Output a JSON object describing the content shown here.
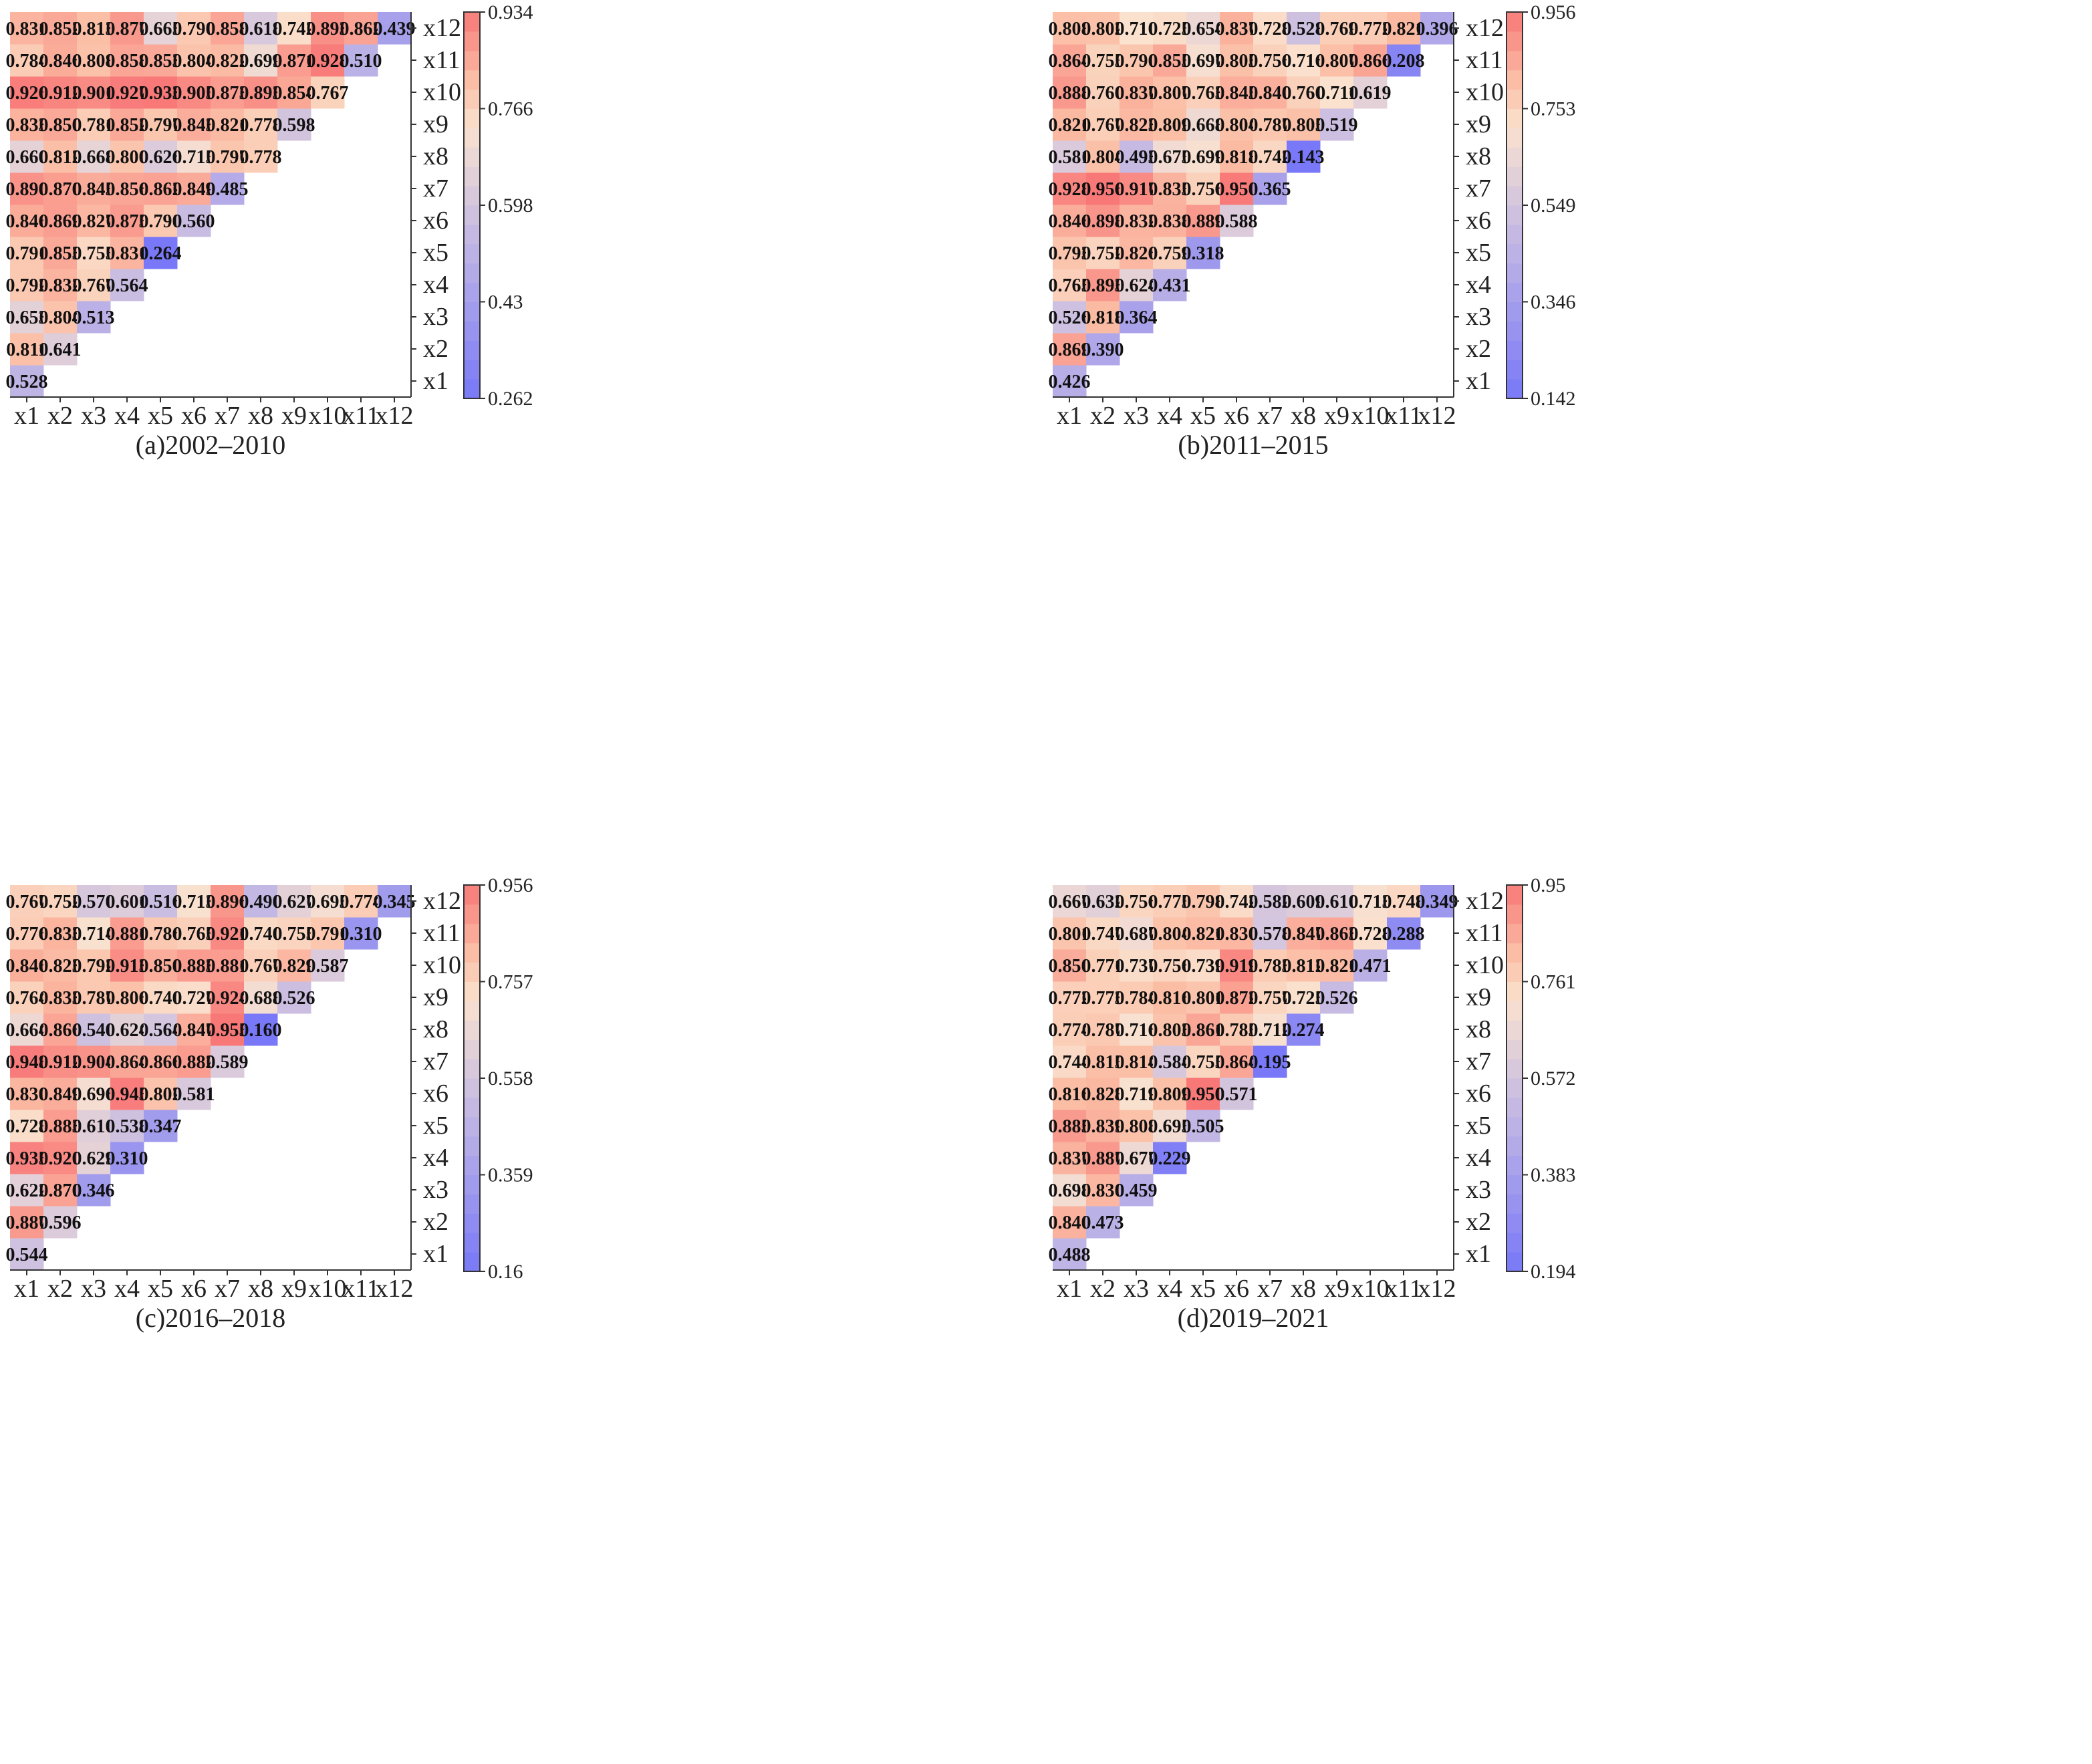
{
  "figure": {
    "description_labels": [
      "x1",
      "x2",
      "x3",
      "x4",
      "x5",
      "x6",
      "x7",
      "x8",
      "x9",
      "x10",
      "x11",
      "x12"
    ],
    "palette": {
      "low": "#7878f8",
      "lavender": "#c9bde2",
      "mid": "#fae2cf",
      "peach": "#fbbfa6",
      "high": "#f87878"
    }
  },
  "chart_data": [
    {
      "type": "heatmap",
      "title": "(a)2002–2010",
      "categories": [
        "x1",
        "x2",
        "x3",
        "x4",
        "x5",
        "x6",
        "x7",
        "x8",
        "x9",
        "x10",
        "x11",
        "x12"
      ],
      "values": [
        [
          0.528
        ],
        [
          0.811,
          0.641
        ],
        [
          0.653,
          0.804,
          0.513
        ],
        [
          0.792,
          0.832,
          0.767,
          0.564
        ],
        [
          0.791,
          0.853,
          0.755,
          0.831,
          0.264
        ],
        [
          0.846,
          0.869,
          0.827,
          0.875,
          0.79,
          0.56
        ],
        [
          0.89,
          0.87,
          0.845,
          0.856,
          0.862,
          0.849,
          0.485
        ],
        [
          0.66,
          0.812,
          0.668,
          0.8,
          0.626,
          0.715,
          0.797,
          0.778
        ],
        [
          0.833,
          0.85,
          0.781,
          0.852,
          0.797,
          0.843,
          0.821,
          0.778,
          0.598
        ],
        [
          0.926,
          0.912,
          0.901,
          0.927,
          0.933,
          0.905,
          0.873,
          0.893,
          0.854,
          0.767
        ],
        [
          0.784,
          0.846,
          0.808,
          0.858,
          0.853,
          0.804,
          0.822,
          0.699,
          0.871,
          0.928,
          0.51
        ],
        [
          0.831,
          0.852,
          0.813,
          0.877,
          0.665,
          0.79,
          0.858,
          0.618,
          0.742,
          0.893,
          0.862,
          0.439
        ]
      ],
      "value_labels": [
        [
          "0.528"
        ],
        [
          "0.811",
          "0.641"
        ],
        [
          "0.653",
          "0.804",
          "0.513"
        ],
        [
          "0.792",
          "0.832",
          "0.767",
          "0.564"
        ],
        [
          "0.791",
          "0.853",
          "0.755",
          "0.831",
          "0.264"
        ],
        [
          "0.846",
          "0.869",
          "0.827",
          "0.875",
          "0.790",
          "0.560"
        ],
        [
          "0.890",
          "0.870",
          "0.845",
          "0.856",
          "0.862",
          "0.849",
          "0.485"
        ],
        [
          "0.660",
          "0.812",
          "0.668",
          "0.800",
          "0.626",
          "0.715",
          "0.797",
          "0.778"
        ],
        [
          "0.833",
          "0.850",
          "0.781",
          "0.852",
          "0.797",
          "0.843",
          "0.821",
          "0.778",
          "0.598"
        ],
        [
          "0.926",
          "0.912",
          "0.901",
          "0.927",
          "0.933",
          "0.905",
          "0.873",
          "0.893",
          "0.854",
          "0.767"
        ],
        [
          "0.784",
          "0.846",
          "0.808",
          "0.858",
          "0.853",
          "0.804",
          "0.822",
          "0.699",
          "0.871",
          "0.928",
          "0.510"
        ],
        [
          "0.831",
          "0.852",
          "0.813",
          "0.877",
          "0.665",
          "0.790",
          "0.858",
          "0.618",
          "0.742",
          "0.893",
          "0.862",
          "0.439"
        ]
      ],
      "colorbar": {
        "min": 0.262,
        "max": 0.934,
        "ticks": [
          "0.262",
          "0.43",
          "0.598",
          "0.766",
          "0.934"
        ]
      }
    },
    {
      "type": "heatmap",
      "title": "(b)2011–2015",
      "categories": [
        "x1",
        "x2",
        "x3",
        "x4",
        "x5",
        "x6",
        "x7",
        "x8",
        "x9",
        "x10",
        "x11",
        "x12"
      ],
      "values": [
        [
          0.426
        ],
        [
          0.869,
          0.39
        ],
        [
          0.526,
          0.818,
          0.364
        ],
        [
          0.765,
          0.893,
          0.624,
          0.431
        ],
        [
          0.793,
          0.752,
          0.826,
          0.759,
          0.318
        ],
        [
          0.846,
          0.898,
          0.832,
          0.838,
          0.889,
          0.588
        ],
        [
          0.928,
          0.956,
          0.917,
          0.835,
          0.756,
          0.95,
          0.365
        ],
        [
          0.581,
          0.804,
          0.493,
          0.675,
          0.699,
          0.818,
          0.742,
          0.143
        ],
        [
          0.821,
          0.767,
          0.823,
          0.809,
          0.668,
          0.804,
          0.787,
          0.805,
          0.519
        ],
        [
          0.888,
          0.76,
          0.837,
          0.807,
          0.763,
          0.845,
          0.84,
          0.76,
          0.711,
          0.619
        ],
        [
          0.864,
          0.755,
          0.79,
          0.855,
          0.697,
          0.805,
          0.756,
          0.716,
          0.807,
          0.866,
          0.208
        ],
        [
          0.808,
          0.802,
          0.71,
          0.725,
          0.654,
          0.837,
          0.728,
          0.528,
          0.769,
          0.772,
          0.821,
          0.396
        ]
      ],
      "value_labels": [
        [
          "0.426"
        ],
        [
          "0.869",
          "0.390"
        ],
        [
          "0.526",
          "0.818",
          "0.364"
        ],
        [
          "0.765",
          "0.893",
          "0.624",
          "0.431"
        ],
        [
          "0.793",
          "0.752",
          "0.826",
          "0.759",
          "0.318"
        ],
        [
          "0.846",
          "0.898",
          "0.832",
          "0.838",
          "0.889",
          "0.588"
        ],
        [
          "0.928",
          "0.956",
          "0.917",
          "0.835",
          "0.756",
          "0.950",
          "0.365"
        ],
        [
          "0.581",
          "0.804",
          "0.493",
          "0.675",
          "0.699",
          "0.818",
          "0.742",
          "0.143"
        ],
        [
          "0.821",
          "0.767",
          "0.823",
          "0.809",
          "0.668",
          "0.804",
          "0.787",
          "0.805",
          "0.519"
        ],
        [
          "0.888",
          "0.760",
          "0.837",
          "0.807",
          "0.763",
          "0.845",
          "0.840",
          "0.760",
          "0.711",
          "0.619"
        ],
        [
          "0.864",
          "0.755",
          "0.790",
          "0.855",
          "0.697",
          "0.805",
          "0.756",
          "0.716",
          "0.807",
          "0.866",
          "0.208"
        ],
        [
          "0.808",
          "0.802",
          "0.710",
          "0.725",
          "0.654",
          "0.837",
          "0.728",
          "0.528",
          "0.769",
          "0.772",
          "0.821",
          "0.396"
        ]
      ],
      "colorbar": {
        "min": 0.142,
        "max": 0.956,
        "ticks": [
          "0.142",
          "0.346",
          "0.549",
          "0.753",
          "0.956"
        ]
      }
    },
    {
      "type": "heatmap",
      "title": "(c)2016–2018",
      "categories": [
        "x1",
        "x2",
        "x3",
        "x4",
        "x5",
        "x6",
        "x7",
        "x8",
        "x9",
        "x10",
        "x11",
        "x12"
      ],
      "values": [
        [
          0.544
        ],
        [
          0.887,
          0.596
        ],
        [
          0.622,
          0.87,
          0.346
        ],
        [
          0.935,
          0.92,
          0.629,
          0.31
        ],
        [
          0.728,
          0.883,
          0.61,
          0.538,
          0.347
        ],
        [
          0.83,
          0.849,
          0.696,
          0.945,
          0.802,
          0.581
        ],
        [
          0.948,
          0.912,
          0.904,
          0.864,
          0.866,
          0.882,
          0.589
        ],
        [
          0.664,
          0.866,
          0.54,
          0.624,
          0.564,
          0.847,
          0.955,
          0.16
        ],
        [
          0.764,
          0.833,
          0.787,
          0.806,
          0.74,
          0.727,
          0.924,
          0.688,
          0.526
        ],
        [
          0.846,
          0.823,
          0.792,
          0.913,
          0.85,
          0.883,
          0.881,
          0.767,
          0.829,
          0.587
        ],
        [
          0.776,
          0.833,
          0.714,
          0.881,
          0.786,
          0.765,
          0.921,
          0.74,
          0.755,
          0.791,
          0.31
        ],
        [
          0.767,
          0.752,
          0.57,
          0.601,
          0.516,
          0.713,
          0.896,
          0.49,
          0.627,
          0.695,
          0.774,
          0.345
        ]
      ],
      "value_labels": [
        [
          "0.544"
        ],
        [
          "0.887",
          "0.596"
        ],
        [
          "0.622",
          "0.870",
          "0.346"
        ],
        [
          "0.935",
          "0.920",
          "0.629",
          "0.310"
        ],
        [
          "0.728",
          "0.883",
          "0.610",
          "0.538",
          "0.347"
        ],
        [
          "0.830",
          "0.849",
          "0.696",
          "0.945",
          "0.802",
          "0.581"
        ],
        [
          "0.948",
          "0.912",
          "0.904",
          "0.864",
          "0.866",
          "0.882",
          "0.589"
        ],
        [
          "0.664",
          "0.866",
          "0.540",
          "0.624",
          "0.564",
          "0.847",
          "0.955",
          "0.160"
        ],
        [
          "0.764",
          "0.833",
          "0.787",
          "0.806",
          "0.740",
          "0.727",
          "0.924",
          "0.688",
          "0.526"
        ],
        [
          "0.846",
          "0.823",
          "0.792",
          "0.913",
          "0.850",
          "0.883",
          "0.881",
          "0.767",
          "0.829",
          "0.587"
        ],
        [
          "0.776",
          "0.833",
          "0.714",
          "0.881",
          "0.786",
          "0.765",
          "0.921",
          "0.740",
          "0.755",
          "0.791",
          "0.310"
        ],
        [
          "0.767",
          "0.752",
          "0.570",
          "0.601",
          "0.516",
          "0.713",
          "0.896",
          "0.490",
          "0.627",
          "0.695",
          "0.774",
          "0.345"
        ]
      ],
      "colorbar": {
        "min": 0.16,
        "max": 0.956,
        "ticks": [
          "0.16",
          "0.359",
          "0.558",
          "0.757",
          "0.956"
        ]
      }
    },
    {
      "type": "heatmap",
      "title": "(d)2019–2021",
      "categories": [
        "x1",
        "x2",
        "x3",
        "x4",
        "x5",
        "x6",
        "x7",
        "x8",
        "x9",
        "x10",
        "x11",
        "x12"
      ],
      "values": [
        [
          0.488
        ],
        [
          0.84,
          0.473
        ],
        [
          0.698,
          0.83,
          0.459
        ],
        [
          0.837,
          0.887,
          0.677,
          0.229
        ],
        [
          0.885,
          0.839,
          0.808,
          0.695,
          0.505
        ],
        [
          0.816,
          0.828,
          0.719,
          0.809,
          0.95,
          0.571
        ],
        [
          0.744,
          0.815,
          0.814,
          0.584,
          0.755,
          0.864,
          0.195
        ],
        [
          0.774,
          0.787,
          0.716,
          0.803,
          0.861,
          0.785,
          0.712,
          0.274
        ],
        [
          0.772,
          0.773,
          0.784,
          0.816,
          0.801,
          0.872,
          0.757,
          0.725,
          0.526
        ],
        [
          0.85,
          0.771,
          0.737,
          0.756,
          0.739,
          0.919,
          0.783,
          0.812,
          0.821,
          0.471
        ],
        [
          0.801,
          0.747,
          0.687,
          0.804,
          0.821,
          0.83,
          0.578,
          0.847,
          0.863,
          0.728,
          0.288
        ],
        [
          0.667,
          0.632,
          0.756,
          0.775,
          0.798,
          0.742,
          0.582,
          0.609,
          0.61,
          0.713,
          0.748,
          0.349
        ]
      ],
      "value_labels": [
        [
          "0.488"
        ],
        [
          "0.840",
          "0.473"
        ],
        [
          "0.698",
          "0.830",
          "0.459"
        ],
        [
          "0.837",
          "0.887",
          "0.677",
          "0.229"
        ],
        [
          "0.885",
          "0.839",
          "0.808",
          "0.695",
          "0.505"
        ],
        [
          "0.816",
          "0.828",
          "0.719",
          "0.809",
          "0.950",
          "0.571"
        ],
        [
          "0.744",
          "0.815",
          "0.814",
          "0.584",
          "0.755",
          "0.864",
          "0.195"
        ],
        [
          "0.774",
          "0.787",
          "0.716",
          "0.803",
          "0.861",
          "0.785",
          "0.712",
          "0.274"
        ],
        [
          "0.772",
          "0.773",
          "0.784",
          "0.816",
          "0.801",
          "0.872",
          "0.757",
          "0.725",
          "0.526"
        ],
        [
          "0.850",
          "0.771",
          "0.737",
          "0.756",
          "0.739",
          "0.919",
          "0.783",
          "0.812",
          "0.821",
          "0.471"
        ],
        [
          "0.801",
          "0.747",
          "0.687",
          "0.804",
          "0.821",
          "0.830",
          "0.578",
          "0.847",
          "0.863",
          "0.728",
          "0.288"
        ],
        [
          "0.667",
          "0.632",
          "0.756",
          "0.775",
          "0.798",
          "0.742",
          "0.582",
          "0.609",
          "0.610",
          "0.713",
          "0.748",
          "0.349"
        ]
      ],
      "colorbar": {
        "min": 0.194,
        "max": 0.95,
        "ticks": [
          "0.194",
          "0.383",
          "0.572",
          "0.761",
          "0.95"
        ]
      }
    }
  ]
}
